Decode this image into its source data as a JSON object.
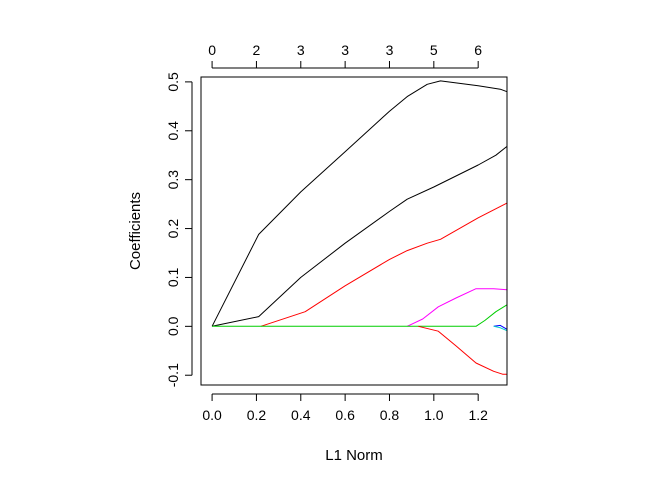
{
  "chart_data": {
    "type": "line",
    "title": "",
    "xlabel": "L1 Norm",
    "ylabel": "Coefficients",
    "xlim": [
      -0.05,
      1.33
    ],
    "ylim": [
      -0.12,
      0.51
    ],
    "x_ticks": [
      0.0,
      0.2,
      0.4,
      0.6,
      0.8,
      1.0,
      1.2
    ],
    "x_tick_labels": [
      "0.0",
      "0.2",
      "0.4",
      "0.6",
      "0.8",
      "1.0",
      "1.2"
    ],
    "y_ticks": [
      -0.1,
      0.0,
      0.1,
      0.2,
      0.3,
      0.4,
      0.5
    ],
    "y_tick_labels": [
      "-0.1",
      "0.0",
      "0.1",
      "0.2",
      "0.3",
      "0.4",
      "0.5"
    ],
    "top_axis": {
      "positions": [
        0.0,
        0.2,
        0.4,
        0.6,
        0.8,
        1.0,
        1.2
      ],
      "labels": [
        "0",
        "2",
        "3",
        "3",
        "3",
        "5",
        "6"
      ]
    },
    "grid": false,
    "legend": "none",
    "series": [
      {
        "color": "#000000",
        "points": [
          [
            0.0,
            0.0
          ],
          [
            0.21,
            0.188
          ],
          [
            0.4,
            0.275
          ],
          [
            0.6,
            0.357
          ],
          [
            0.8,
            0.44
          ],
          [
            0.88,
            0.47
          ],
          [
            0.97,
            0.495
          ],
          [
            1.03,
            0.502
          ],
          [
            1.2,
            0.492
          ],
          [
            1.3,
            0.485
          ],
          [
            1.33,
            0.48
          ]
        ]
      },
      {
        "color": "#000000",
        "points": [
          [
            0.0,
            0.0
          ],
          [
            0.21,
            0.02
          ],
          [
            0.4,
            0.1
          ],
          [
            0.6,
            0.17
          ],
          [
            0.8,
            0.235
          ],
          [
            0.88,
            0.26
          ],
          [
            1.0,
            0.285
          ],
          [
            1.2,
            0.33
          ],
          [
            1.28,
            0.35
          ],
          [
            1.33,
            0.368
          ]
        ]
      },
      {
        "color": "#ff0000",
        "points": [
          [
            0.22,
            0.0
          ],
          [
            0.42,
            0.03
          ],
          [
            0.6,
            0.083
          ],
          [
            0.8,
            0.137
          ],
          [
            0.88,
            0.155
          ],
          [
            0.97,
            0.17
          ],
          [
            1.03,
            0.178
          ],
          [
            1.2,
            0.222
          ],
          [
            1.33,
            0.252
          ]
        ]
      },
      {
        "color": "#ff00ff",
        "points": [
          [
            0.88,
            0.0
          ],
          [
            0.95,
            0.015
          ],
          [
            1.02,
            0.04
          ],
          [
            1.1,
            0.058
          ],
          [
            1.19,
            0.077
          ],
          [
            1.27,
            0.077
          ],
          [
            1.33,
            0.075
          ]
        ]
      },
      {
        "color": "#00cd00",
        "points": [
          [
            0.0,
            0.0
          ],
          [
            1.19,
            0.0
          ],
          [
            1.23,
            0.012
          ],
          [
            1.28,
            0.03
          ],
          [
            1.33,
            0.044
          ]
        ]
      },
      {
        "color": "#ff0000",
        "points": [
          [
            0.93,
            0.0
          ],
          [
            1.02,
            -0.01
          ],
          [
            1.1,
            -0.04
          ],
          [
            1.19,
            -0.075
          ],
          [
            1.27,
            -0.092
          ],
          [
            1.31,
            -0.098
          ],
          [
            1.33,
            -0.098
          ]
        ]
      },
      {
        "color": "#0000ff",
        "points": [
          [
            1.27,
            0.0
          ],
          [
            1.3,
            0.002
          ],
          [
            1.33,
            -0.006
          ]
        ]
      },
      {
        "color": "#00cdcd",
        "points": [
          [
            1.27,
            0.0
          ],
          [
            1.3,
            -0.003
          ],
          [
            1.33,
            -0.009
          ]
        ]
      }
    ]
  }
}
